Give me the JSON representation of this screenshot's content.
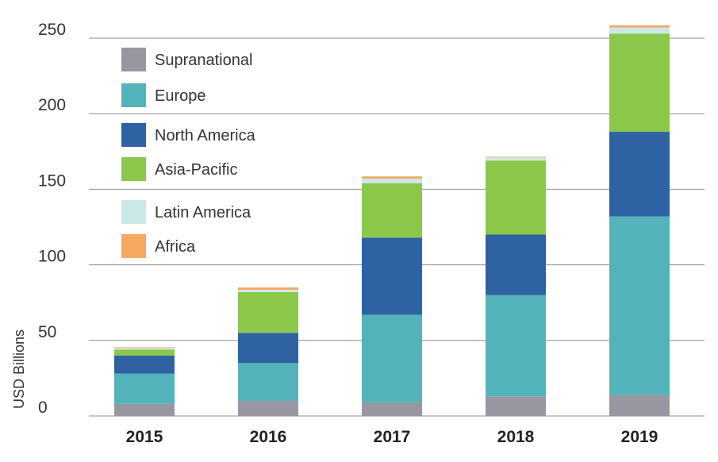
{
  "chart_data": {
    "type": "bar",
    "stacked": true,
    "title": "",
    "xlabel": "",
    "ylabel": "USD Billions",
    "ylim": [
      0,
      250
    ],
    "yticks": [
      0,
      50,
      100,
      150,
      200,
      250
    ],
    "grid": true,
    "legend_position": "top-left",
    "categories": [
      "2015",
      "2016",
      "2017",
      "2018",
      "2019"
    ],
    "series": [
      {
        "name": "Supranational",
        "color": "#9897a1",
        "values": [
          8,
          10,
          9,
          13,
          14
        ]
      },
      {
        "name": "Europe",
        "color": "#52b3bb",
        "values": [
          20,
          25,
          58,
          67,
          118
        ]
      },
      {
        "name": "North America",
        "color": "#2e62a3",
        "values": [
          12,
          20,
          51,
          40,
          56
        ]
      },
      {
        "name": "Asia-Pacific",
        "color": "#8bc84a",
        "values": [
          4,
          27,
          36,
          49,
          65
        ]
      },
      {
        "name": "Latin America",
        "color": "#cbe9e8",
        "values": [
          1,
          1.5,
          3,
          2,
          4
        ]
      },
      {
        "name": "Africa",
        "color": "#f5a862",
        "values": [
          0.5,
          1.5,
          1.5,
          0.5,
          1.5
        ]
      }
    ]
  }
}
